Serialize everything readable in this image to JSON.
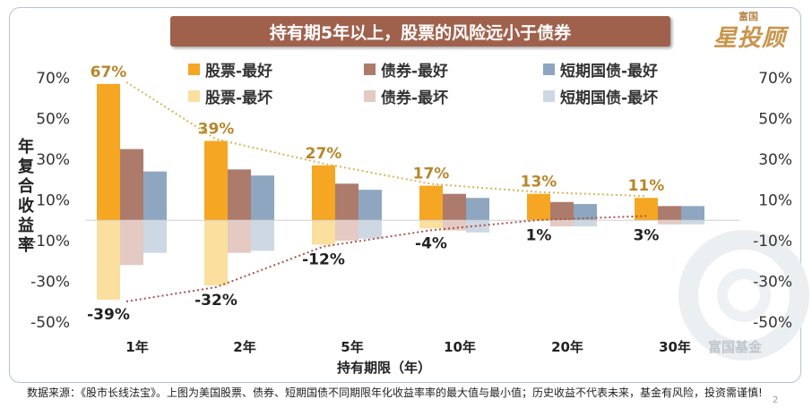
{
  "title": "持有期5年以上，股票的风险远小于债券",
  "logo": {
    "small": "富国",
    "big": "星投顾"
  },
  "watermark": "富国基金",
  "footnote": "数据来源：《股市长线法宝》。上图为美国股票、债券、短期国债不同期限年化收益率率的最大值与最小值；历史收益不代表未来，基金有风险，投资需谨慎!",
  "page_number": "2",
  "colors": {
    "stock_best": "#f5a623",
    "bond_best": "#ad7b6b",
    "tbill_best": "#8ea6c0",
    "stock_worst": "#fbdf9f",
    "bond_worst": "#e4cac2",
    "tbill_worst": "#cdd8e3",
    "label": "#b8862b",
    "title_bg": "#a0614c"
  },
  "chart_data": {
    "type": "bar",
    "title": "持有期5年以上，股票的风险远小于债券",
    "xlabel": "持有期限（年）",
    "ylabel": "年复合收益率",
    "ylabel_chars": [
      "年",
      "复",
      "合",
      "收",
      "益",
      "率"
    ],
    "categories": [
      "1年",
      "2年",
      "5年",
      "10年",
      "20年",
      "30年"
    ],
    "ylim": [
      -50,
      70
    ],
    "yticks": [
      "70%",
      "50%",
      "30%",
      "10%",
      "-10%",
      "-30%",
      "-50%"
    ],
    "ytick_values": [
      70,
      50,
      30,
      10,
      -10,
      -30,
      -50
    ],
    "series": [
      {
        "name": "股票-最好",
        "values": [
          67,
          39,
          27,
          17,
          13,
          11
        ]
      },
      {
        "name": "债券-最好",
        "values": [
          35,
          25,
          18,
          13,
          9,
          7
        ]
      },
      {
        "name": "短期国债-最好",
        "values": [
          24,
          22,
          15,
          11,
          8,
          7
        ]
      },
      {
        "name": "股票-最坏",
        "values": [
          -39,
          -32,
          -12,
          -4,
          1,
          3
        ]
      },
      {
        "name": "债券-最坏",
        "values": [
          -22,
          -16,
          -10,
          -5,
          -3,
          -2
        ]
      },
      {
        "name": "短期国债-最坏",
        "values": [
          -16,
          -15,
          -9,
          -6,
          -3,
          -2
        ]
      }
    ],
    "best_labels": [
      "67%",
      "39%",
      "27%",
      "17%",
      "13%",
      "11%"
    ],
    "worst_labels": [
      "-39%",
      "-32%",
      "-12%",
      "-4%",
      "1%",
      "3%"
    ],
    "legend": [
      "股票-最好",
      "债券-最好",
      "短期国债-最好",
      "股票-最坏",
      "债券-最坏",
      "短期国债-最坏"
    ]
  }
}
